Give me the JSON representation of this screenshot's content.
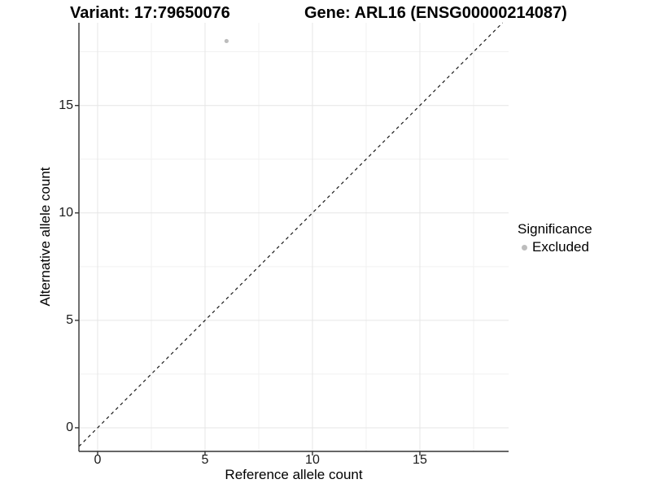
{
  "title": {
    "variant": "Variant: 17:79650076",
    "gene": "Gene: ARL16 (ENSG00000214087)"
  },
  "axes": {
    "x_label": "Reference allele count",
    "y_label": "Alternative allele count"
  },
  "legend": {
    "title": "Significance",
    "items": [
      {
        "label": "Excluded",
        "color": "#bdbdbd"
      }
    ]
  },
  "colors": {
    "background": "#ffffff",
    "grid_major": "#e6e6e6",
    "grid_minor": "#f1f1f1",
    "axis_line": "#333333",
    "tick_mark": "#333333",
    "reference_line": "#1a1a1a",
    "point": "#bdbdbd",
    "text": "#000000"
  },
  "chart_data": {
    "type": "scatter",
    "title": "Variant: 17:79650076 / Gene: ARL16 (ENSG00000214087)",
    "xlabel": "Reference allele count",
    "ylabel": "Alternative allele count",
    "xlim": [
      -0.87,
      19.13
    ],
    "ylim": [
      -1.1,
      18.85
    ],
    "x_ticks": [
      0,
      5,
      10,
      15
    ],
    "y_ticks": [
      0,
      5,
      10,
      15
    ],
    "x_minor_ticks": [
      2.5,
      7.5,
      12.5,
      17.5
    ],
    "y_minor_ticks": [
      2.5,
      7.5,
      12.5,
      17.5
    ],
    "grid": true,
    "legend_position": "right",
    "series": [
      {
        "name": "Excluded",
        "color": "#bdbdbd",
        "points": [
          {
            "x": 6,
            "y": 18
          }
        ]
      }
    ],
    "reference_line": {
      "equation": "y = x",
      "style": "dashed",
      "color": "#1a1a1a"
    }
  }
}
